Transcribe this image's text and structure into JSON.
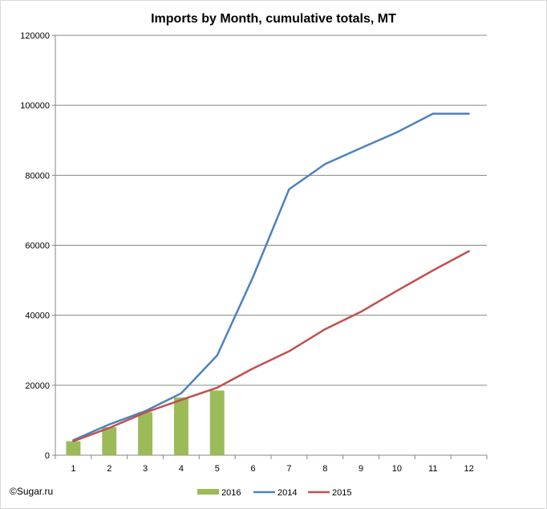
{
  "chart_data": {
    "type": "bar",
    "title": "Imports by Month, cumulative totals, MT",
    "xlabel": "",
    "ylabel": "",
    "categories": [
      "1",
      "2",
      "3",
      "4",
      "5",
      "6",
      "7",
      "8",
      "9",
      "10",
      "11",
      "12"
    ],
    "ylim": [
      0,
      120000
    ],
    "yticks": [
      0,
      20000,
      40000,
      60000,
      80000,
      100000,
      120000
    ],
    "ytick_labels": [
      "0",
      "20000",
      "40000",
      "60000",
      "80000",
      "100000",
      "120000"
    ],
    "grid": true,
    "legend_position": "bottom",
    "series": [
      {
        "name": "2016",
        "kind": "bar",
        "color": "#9bbb59",
        "values": [
          4000,
          8000,
          12300,
          16500,
          18500,
          null,
          null,
          null,
          null,
          null,
          null,
          null
        ]
      },
      {
        "name": "2014",
        "kind": "line",
        "color": "#4f81bd",
        "values": [
          4300,
          8800,
          12600,
          17700,
          28500,
          51000,
          76000,
          83200,
          87800,
          92300,
          97600,
          97600
        ]
      },
      {
        "name": "2015",
        "kind": "line",
        "color": "#c0504d",
        "values": [
          4000,
          7800,
          12200,
          15800,
          19300,
          24800,
          29700,
          36000,
          41000,
          47000,
          52800,
          58300
        ]
      }
    ]
  },
  "credit": "©Sugar.ru"
}
